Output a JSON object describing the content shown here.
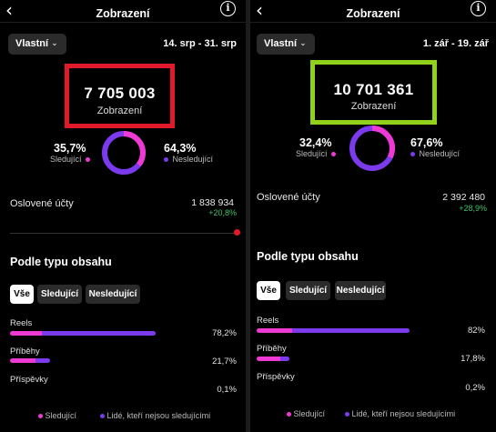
{
  "left": {
    "header": {
      "title": "Zobrazení",
      "back_icon": "chevron-left-icon",
      "info_icon": "info-icon"
    },
    "period": {
      "dropdown_label": "Vlastní",
      "date_range": "14. srp - 31. srp"
    },
    "highlight_color": "#e0192b",
    "total": {
      "value": "7 705 003",
      "label": "Zobrazení"
    },
    "donut": {
      "followers_fraction": 0.357
    },
    "split": {
      "followers": {
        "percent": "35,7%",
        "label": "Sledující"
      },
      "non_followers": {
        "percent": "64,3%",
        "label": "Nesledující"
      }
    },
    "reached": {
      "label": "Oslovené účty",
      "value": "1 838 934",
      "growth": "+20,8%"
    },
    "content_section": {
      "title": "Podle typu obsahu",
      "filters": [
        "Vše",
        "Sledující",
        "Nesledující"
      ],
      "active_filter": "Vše",
      "categories": [
        {
          "name": "Reels",
          "percent": "78,2%",
          "share": 0.782,
          "follower_share": 0.22
        },
        {
          "name": "Příběhy",
          "percent": "21,7%",
          "share": 0.217,
          "follower_share": 0.62
        },
        {
          "name": "Příspěvky",
          "percent": "0,1%",
          "share": 0.0,
          "follower_share": 0.5
        }
      ]
    },
    "legend": {
      "followers": "Sledující",
      "non_followers": "Lidé, kteří nejsou sledujícími"
    }
  },
  "right": {
    "header": {
      "title": "Zobrazení",
      "back_icon": "chevron-left-icon",
      "info_icon": "info-icon"
    },
    "period": {
      "dropdown_label": "Vlastní",
      "date_range": "1. zář - 19. zář"
    },
    "highlight_color": "#8fd11b",
    "total": {
      "value": "10 701 361",
      "label": "Zobrazení"
    },
    "donut": {
      "followers_fraction": 0.324
    },
    "split": {
      "followers": {
        "percent": "32,4%",
        "label": "Sledující"
      },
      "non_followers": {
        "percent": "67,6%",
        "label": "Nesledující"
      }
    },
    "reached": {
      "label": "Oslovené účty",
      "value": "2 392 480",
      "growth": "+28,9%"
    },
    "content_section": {
      "title": "Podle typu obsahu",
      "filters": [
        "Vše",
        "Sledující",
        "Nesledující"
      ],
      "active_filter": "Vše",
      "categories": [
        {
          "name": "Reels",
          "percent": "82%",
          "share": 0.82,
          "follower_share": 0.23
        },
        {
          "name": "Příběhy",
          "percent": "17,8%",
          "share": 0.178,
          "follower_share": 0.72
        },
        {
          "name": "Příspěvky",
          "percent": "0,2%",
          "share": 0.0,
          "follower_share": 0.5
        }
      ]
    },
    "legend": {
      "followers": "Sledující",
      "non_followers": "Lidé, kteří nejsou sledujícími"
    }
  }
}
